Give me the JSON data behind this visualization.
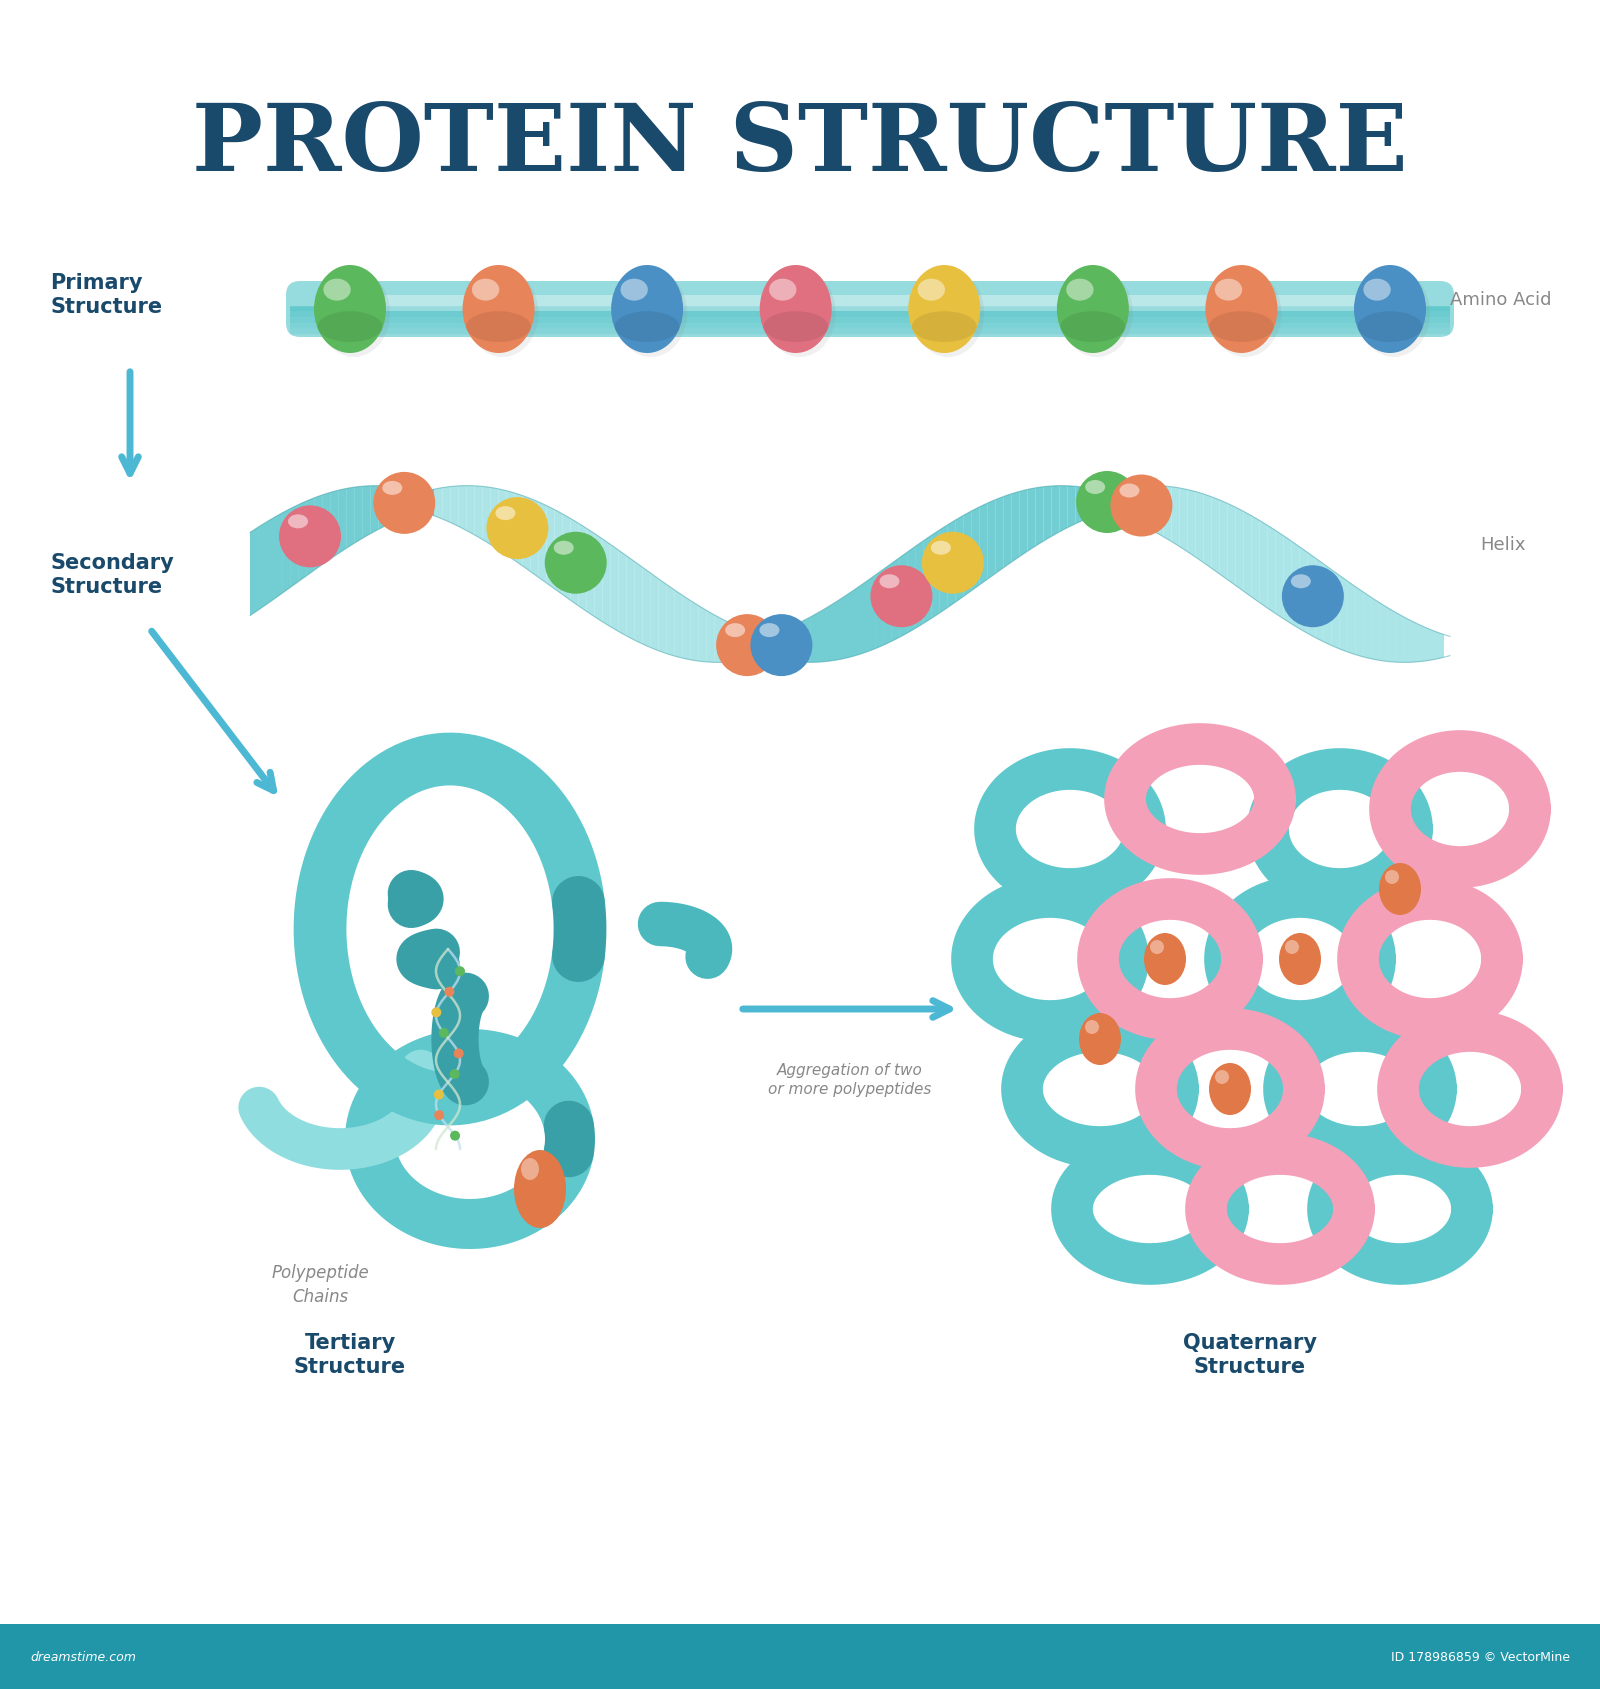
{
  "title": "PROTEIN STRUCTURE",
  "title_color": "#1a4a6b",
  "title_fontsize": 68,
  "bg_color": "#ffffff",
  "footer_color": "#2196a8",
  "footer_text_left": "dreamstime.com",
  "footer_text_right": "ID 178986859 © VectorMine",
  "label_color": "#1a4a6b",
  "arrow_color": "#4db8d4",
  "primary_label": "Primary\nStructure",
  "secondary_label": "Secondary\nStructure",
  "tertiary_label": "Tertiary\nStructure",
  "quaternary_label": "Quaternary\nStructure",
  "amino_acid_label": "Amino Acid",
  "helix_label": "Helix",
  "polypeptide_label": "Polypeptide\nChains",
  "aggregation_label": "Aggregation of two\nor more polypeptides",
  "teal_color": "#5ec8cc",
  "teal_mid": "#4ab8bc",
  "teal_dark": "#3aa0a8",
  "teal_light": "#90dde0",
  "pink_color": "#f4a0b8",
  "pink_mid": "#e88aa8",
  "pink_dark": "#d87090",
  "orange_color": "#e07848",
  "orange_light": "#f09868",
  "green_bead": "#5cb85c",
  "orange_bead": "#e8845a",
  "blue_bead": "#4a90c4",
  "pink_bead": "#e07080",
  "yellow_bead": "#e8c040",
  "gray_bead": "#b8c8d0",
  "bead_colors_primary": [
    "#5cb85c",
    "#e8845a",
    "#4a90c4",
    "#e07080",
    "#e8c040",
    "#5cb85c",
    "#e8845a",
    "#4a90c4"
  ],
  "helix_bead_colors_top": [
    "#e07080",
    "#e8845a",
    "#4a90c4",
    "#e07080",
    "#5cb85c",
    "#e07080"
  ],
  "helix_bead_colors_bot": [
    "#e8c040",
    "#5cb85c",
    "#e07080",
    "#e8c040",
    "#b8c8d0",
    "#4a90c4"
  ]
}
